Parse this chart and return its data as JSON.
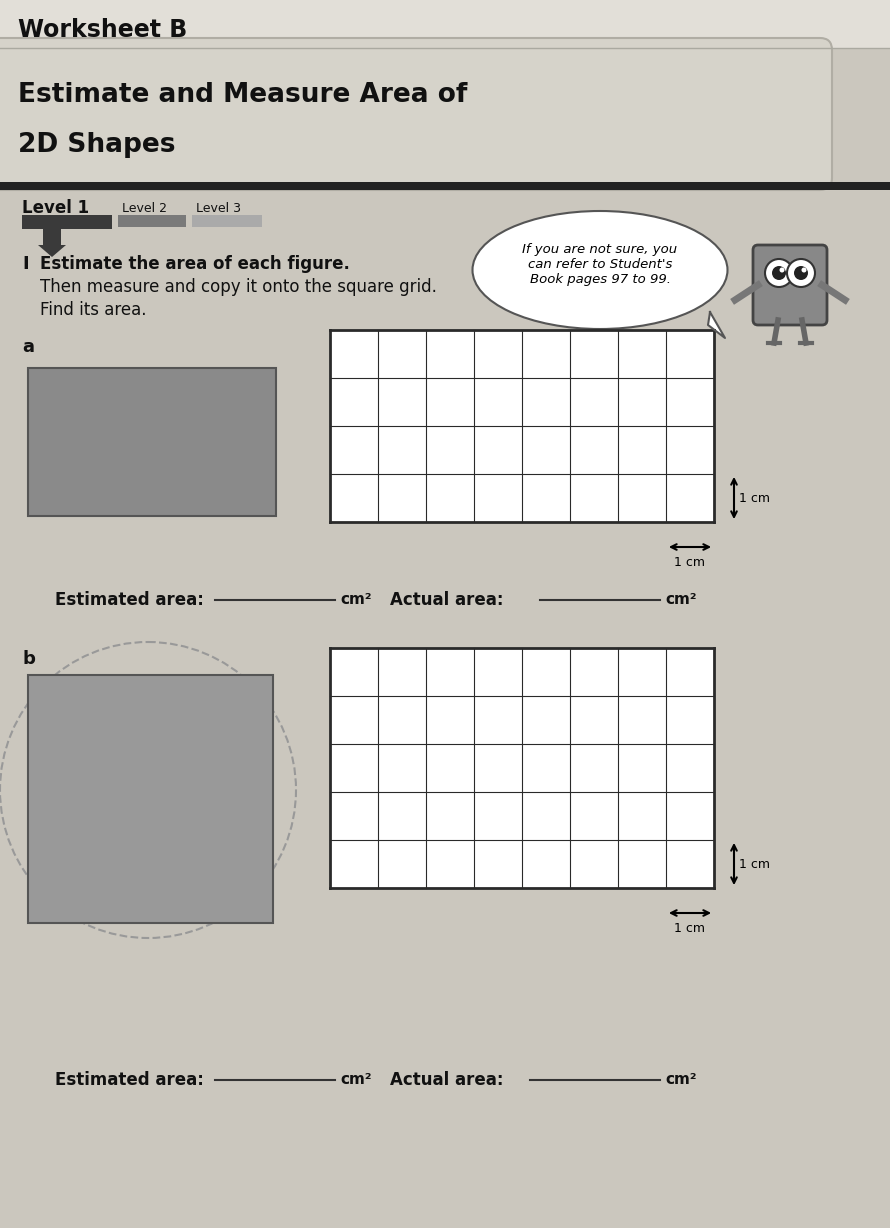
{
  "title": "Worksheet B",
  "subtitle_line1": "Estimate and Measure Area of",
  "subtitle_line2": "2D Shapes",
  "level1_label": "Level 1",
  "level2_label": "Level 2",
  "level3_label": "Level 3",
  "hint_text": "If you are not sure, you\ncan refer to Student's\nBook pages 97 to 99.",
  "instruction_number": "I",
  "instruction_line1": "Estimate the area of each figure.",
  "instruction_line2": "Then measure and copy it onto the square grid.",
  "instruction_line3": "Find its area.",
  "part_a_label": "a",
  "part_b_label": "b",
  "estimated_area_label": "Estimated area: ",
  "actual_area_label": "Actual area: ",
  "cm2_label": "cm²",
  "grid_a_cols": 8,
  "grid_a_rows": 4,
  "grid_b_cols": 8,
  "grid_b_rows": 5,
  "bg_color": "#cbc7be",
  "header_bg": "#e2dfd8",
  "banner_bg": "#d6d3ca",
  "rect_a_color": "#8a8a8a",
  "rect_b_color": "#999999",
  "grid_line_color": "#2a2a2a",
  "dark_color": "#111111",
  "white_color": "#ffffff",
  "level1_color": "#3a3a3a",
  "level2_color": "#7a7a7a",
  "level3_color": "#aaaaaa",
  "separator_color": "#222222"
}
